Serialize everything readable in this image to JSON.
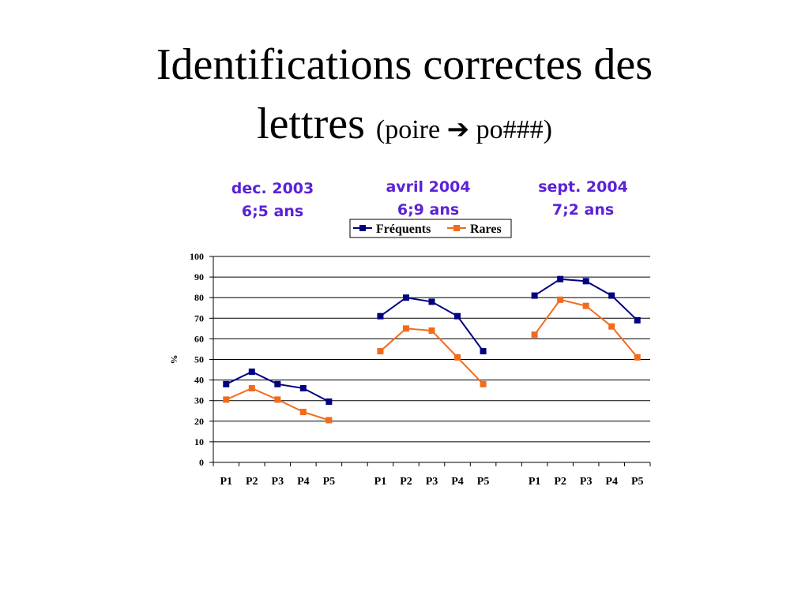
{
  "slide": {
    "title_lines": [
      "Identifications correctes des",
      "lettres"
    ],
    "title_note": "(poire ➔ po###)"
  },
  "chart_data": {
    "type": "line",
    "annotations": [
      [
        "dec. 2003",
        "6;5 ans"
      ],
      [
        "avril 2004",
        "6;9 ans"
      ],
      [
        "sept. 2004",
        "7;2 ans"
      ]
    ],
    "y_label": "%",
    "categories": [
      "P1",
      "P2",
      "P3",
      "P4",
      "P5",
      null,
      "P1",
      "P2",
      "P3",
      "P4",
      "P5",
      null,
      "P1",
      "P2",
      "P3",
      "P4",
      "P5"
    ],
    "series": [
      {
        "name": "Fréquents",
        "color": "#000080",
        "values": [
          38,
          44,
          38,
          36,
          29.5,
          null,
          71,
          80,
          78,
          71,
          54,
          null,
          81,
          89,
          88,
          81,
          69
        ]
      },
      {
        "name": "Rares",
        "color": "#f26b1d",
        "values": [
          30.5,
          36,
          30.5,
          24.5,
          20.5,
          null,
          54,
          65,
          64,
          51,
          38,
          null,
          62,
          79,
          76,
          66,
          51
        ]
      }
    ],
    "ylim": [
      0,
      100
    ],
    "yticks": [
      0,
      10,
      20,
      30,
      40,
      50,
      60,
      70,
      80,
      90,
      100
    ],
    "grid": true,
    "legend": "top"
  }
}
